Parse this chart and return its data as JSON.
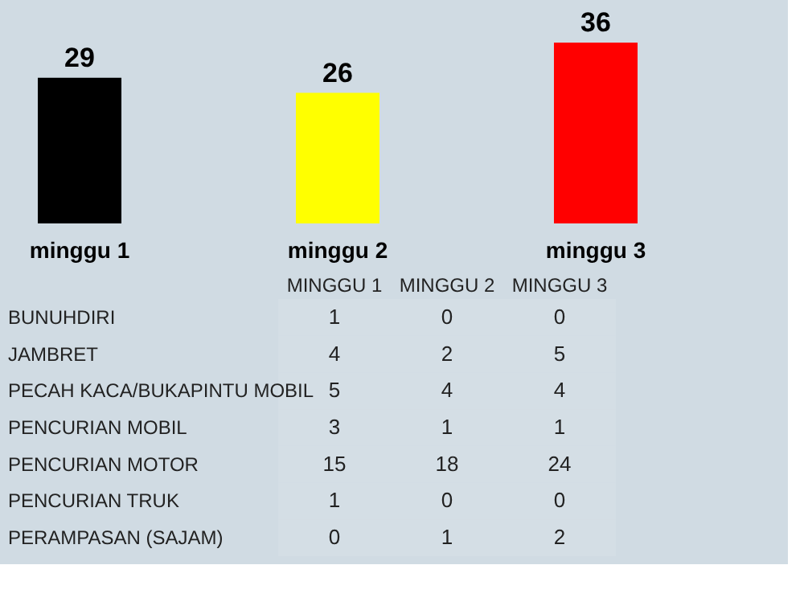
{
  "chart_data": [
    {
      "type": "bar",
      "categories": [
        "minggu 1",
        "minggu 2",
        "minggu 3"
      ],
      "values": [
        29,
        26,
        36
      ],
      "colors": [
        "#000000",
        "#ffff00",
        "#ff0000"
      ],
      "data_labels": true,
      "grid": false
    },
    {
      "type": "heatmap",
      "categories": [
        "MINGGU 1",
        "MINGGU 2",
        "MINGGU 3"
      ],
      "y_categories": [
        "BUNUHDIRI",
        "JAMBRET",
        "PECAH KACA/BUKAPINTU MOBIL",
        "PENCURIAN MOBIL",
        "PENCURIAN MOTOR",
        "PENCURIAN TRUK",
        "PERAMPASAN (SAJAM)"
      ],
      "cells": [
        [
          1,
          0,
          0
        ],
        [
          4,
          2,
          5
        ],
        [
          5,
          4,
          4
        ],
        [
          3,
          1,
          1
        ],
        [
          15,
          18,
          24
        ],
        [
          1,
          0,
          0
        ],
        [
          0,
          1,
          2
        ]
      ],
      "data_labels": true
    }
  ]
}
